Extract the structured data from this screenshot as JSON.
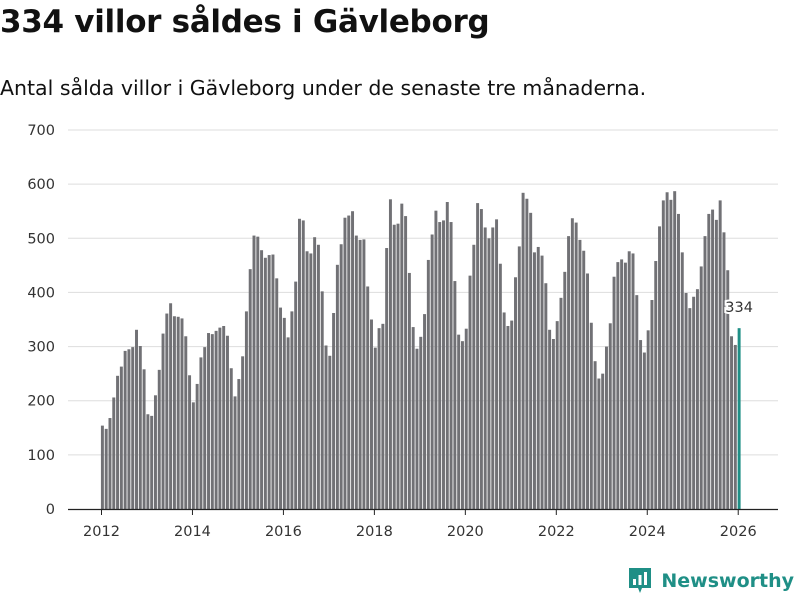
{
  "chart_data": {
    "type": "bar",
    "title": "334 villor såldes i Gävleborg",
    "subtitle": "Antal sålda villor i Gävleborg under de senaste tre månaderna.",
    "xlabel": "",
    "ylabel": "",
    "ylim": [
      0,
      700
    ],
    "yticks": [
      "0",
      "100",
      "200",
      "300",
      "400",
      "500",
      "600",
      "700"
    ],
    "xticks": [
      "2012",
      "2014",
      "2016",
      "2018",
      "2020",
      "2022",
      "2024",
      "2026"
    ],
    "start": "2012-01",
    "highlight_label": "334",
    "colors": {
      "bar": "#717175",
      "highlight": "#1f8f86",
      "grid": "#dddddd",
      "axis": "#222222"
    },
    "values": [
      154,
      148,
      168,
      206,
      246,
      263,
      292,
      295,
      299,
      331,
      301,
      258,
      175,
      172,
      210,
      257,
      324,
      361,
      380,
      356,
      355,
      352,
      319,
      247,
      197,
      231,
      280,
      299,
      325,
      323,
      329,
      335,
      338,
      320,
      260,
      208,
      240,
      282,
      365,
      443,
      505,
      503,
      478,
      464,
      469,
      470,
      426,
      372,
      353,
      317,
      365,
      420,
      536,
      533,
      476,
      472,
      502,
      488,
      402,
      302,
      283,
      362,
      451,
      489,
      538,
      542,
      550,
      505,
      497,
      498,
      411,
      350,
      298,
      334,
      342,
      482,
      572,
      525,
      527,
      564,
      541,
      436,
      336,
      296,
      318,
      360,
      460,
      507,
      551,
      530,
      533,
      567,
      530,
      421,
      322,
      310,
      333,
      431,
      488,
      565,
      554,
      520,
      500,
      520,
      535,
      453,
      363,
      338,
      348,
      428,
      485,
      584,
      573,
      547,
      474,
      484,
      468,
      417,
      331,
      314,
      347,
      390,
      438,
      504,
      537,
      529,
      497,
      477,
      435,
      344,
      273,
      241,
      250,
      300,
      343,
      429,
      456,
      461,
      455,
      476,
      472,
      395,
      312,
      289,
      330,
      386,
      458,
      522,
      570,
      585,
      571,
      587,
      545,
      474,
      399,
      371,
      392,
      406,
      448,
      504,
      545,
      553,
      534,
      570,
      511,
      441,
      319,
      303,
      334
    ]
  },
  "brand": {
    "name": "Newsworthy"
  }
}
